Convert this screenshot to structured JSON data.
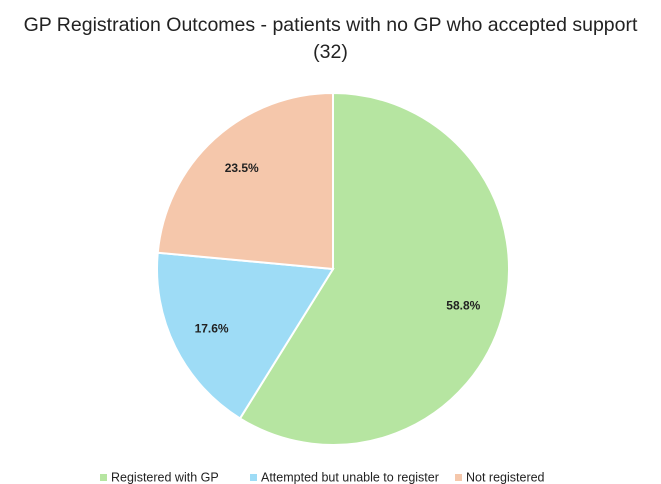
{
  "chart_data": {
    "type": "pie",
    "title": "GP Registration Outcomes - patients with no GP who accepted support (32)",
    "categories": [
      "Registered with GP",
      "Attempted but unable to register",
      "Not registered"
    ],
    "values": [
      58.8,
      17.6,
      23.5
    ],
    "value_labels": [
      "58.8%",
      "17.6%",
      "23.5%"
    ],
    "colors": [
      "#b6e5a1",
      "#9edcf6",
      "#f5c7ab"
    ],
    "legend": "bottom"
  }
}
